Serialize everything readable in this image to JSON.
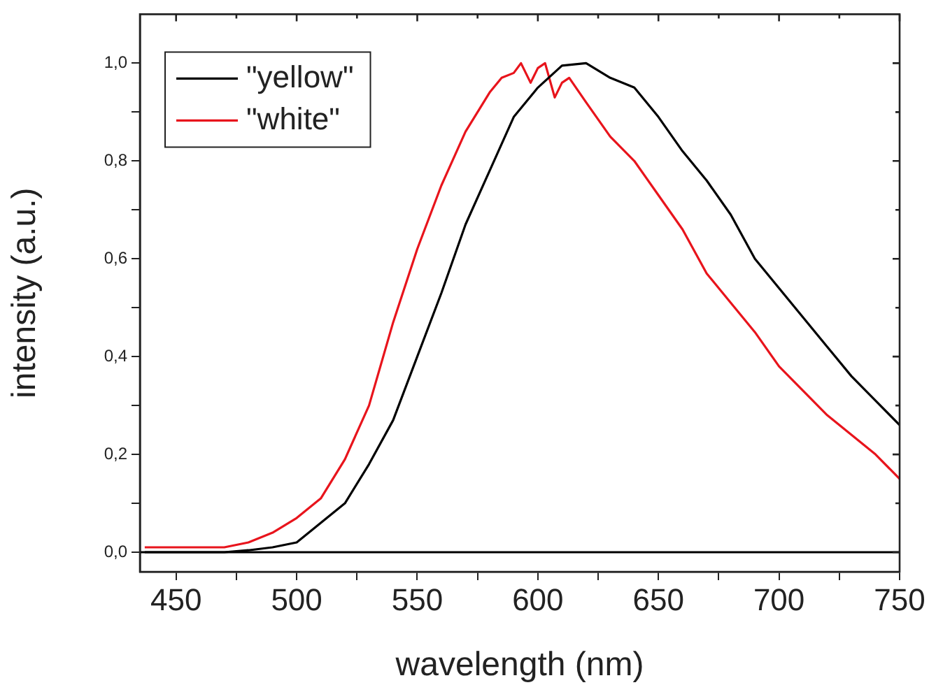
{
  "chart_data": {
    "type": "line",
    "xlabel": "wavelength (nm)",
    "ylabel": "intensity (a.u.)",
    "xlim": [
      435,
      750
    ],
    "ylim": [
      -0.04,
      1.1
    ],
    "xticks": [
      450,
      {
        "value": 475,
        "label": null
      },
      500,
      {
        "value": 525,
        "label": null
      },
      550,
      {
        "value": 575,
        "label": null
      },
      600,
      {
        "value": 625,
        "label": null
      },
      650,
      {
        "value": 675,
        "label": null
      },
      700,
      {
        "value": 725,
        "label": null
      },
      750
    ],
    "yticks": [
      {
        "value": 0,
        "label": "0,0"
      },
      {
        "value": 0.1,
        "label": null
      },
      {
        "value": 0.2,
        "label": "0,2"
      },
      {
        "value": 0.3,
        "label": null
      },
      {
        "value": 0.4,
        "label": "0,4"
      },
      {
        "value": 0.5,
        "label": null
      },
      {
        "value": 0.6,
        "label": "0,6"
      },
      {
        "value": 0.7,
        "label": null
      },
      {
        "value": 0.8,
        "label": "0,8"
      },
      {
        "value": 0.9,
        "label": null
      },
      {
        "value": 1.0,
        "label": "1,0"
      }
    ],
    "grid": false,
    "legend": "top left",
    "marker": "none",
    "line_style": "solid",
    "ref_lines": [
      {
        "axis": "y",
        "value": 0,
        "color": "#000000"
      }
    ],
    "series": [
      {
        "name": "\"yellow\"",
        "color": "#000000",
        "x": [
          437,
          450,
          460,
          470,
          480,
          490,
          500,
          510,
          520,
          530,
          540,
          550,
          560,
          570,
          580,
          590,
          600,
          610,
          620,
          630,
          640,
          650,
          660,
          670,
          680,
          690,
          700,
          710,
          720,
          730,
          740,
          750
        ],
        "values": [
          0,
          0,
          0,
          0,
          0.004,
          0.01,
          0.02,
          0.06,
          0.1,
          0.18,
          0.27,
          0.4,
          0.53,
          0.67,
          0.78,
          0.89,
          0.95,
          0.995,
          1.0,
          0.97,
          0.95,
          0.89,
          0.82,
          0.76,
          0.69,
          0.6,
          0.54,
          0.48,
          0.42,
          0.36,
          0.31,
          0.26
        ]
      },
      {
        "name": "\"white\"",
        "color": "#e8141c",
        "x": [
          437,
          450,
          460,
          470,
          480,
          490,
          500,
          510,
          520,
          530,
          540,
          550,
          560,
          570,
          580,
          585,
          590,
          593,
          597,
          600,
          603,
          607,
          610,
          613,
          620,
          630,
          640,
          650,
          660,
          670,
          680,
          690,
          700,
          710,
          720,
          730,
          740,
          750
        ],
        "values": [
          0.01,
          0.01,
          0.01,
          0.01,
          0.02,
          0.04,
          0.07,
          0.11,
          0.19,
          0.3,
          0.47,
          0.62,
          0.75,
          0.86,
          0.94,
          0.97,
          0.98,
          1.0,
          0.96,
          0.99,
          1.0,
          0.93,
          0.96,
          0.97,
          0.92,
          0.85,
          0.8,
          0.73,
          0.66,
          0.57,
          0.51,
          0.45,
          0.38,
          0.33,
          0.28,
          0.24,
          0.2,
          0.15
        ]
      }
    ]
  }
}
